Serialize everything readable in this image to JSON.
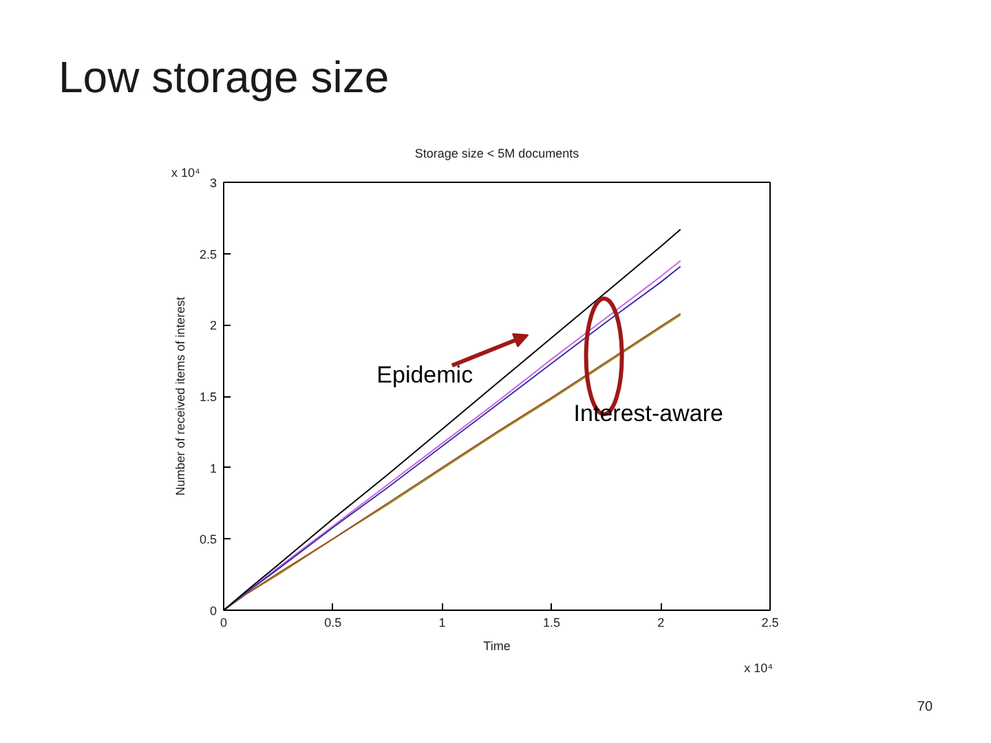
{
  "chart_data": {
    "type": "line",
    "title": "Low storage size",
    "subtitle": "Storage size < 5M documents",
    "xlabel": "Time",
    "ylabel": "Number of received items of interest",
    "x": [
      0,
      0.1,
      0.25,
      0.5,
      0.75,
      1,
      1.25,
      1.5,
      1.75,
      2,
      2.09
    ],
    "series": [
      {
        "color": "#999922",
        "values": [
          0,
          0.11,
          0.25,
          0.5,
          0.74,
          0.99,
          1.24,
          1.48,
          1.73,
          1.98,
          2.07
        ]
      },
      {
        "color": "#a05030",
        "values": [
          0,
          0.11,
          0.26,
          0.5,
          0.75,
          1.0,
          1.25,
          1.49,
          1.74,
          1.99,
          2.08
        ]
      },
      {
        "color": "#cc66dd",
        "values": [
          0,
          0.12,
          0.3,
          0.59,
          0.88,
          1.17,
          1.46,
          1.76,
          2.05,
          2.34,
          2.45
        ]
      },
      {
        "color": "#3333aa",
        "values": [
          0,
          0.12,
          0.29,
          0.58,
          0.86,
          1.15,
          1.44,
          1.73,
          2.02,
          2.3,
          2.41
        ]
      },
      {
        "color": "#000000",
        "values": [
          0,
          0.13,
          0.32,
          0.64,
          0.95,
          1.27,
          1.59,
          1.91,
          2.23,
          2.55,
          2.67
        ]
      }
    ],
    "xlim": [
      0,
      2.5
    ],
    "xticks": [
      0,
      0.5,
      1,
      1.5,
      2,
      2.5
    ],
    "ylim": [
      0,
      3
    ],
    "yticks": [
      0,
      0.5,
      1,
      1.5,
      2,
      2.5,
      3
    ],
    "grid": false,
    "line_style": "solid",
    "annotations": [
      "Epidemic",
      {
        "text": "Interest-aware",
        "x": 1.74,
        "y": 1.78
      },
      "x 10⁴",
      "x 10⁴",
      "70"
    ]
  }
}
